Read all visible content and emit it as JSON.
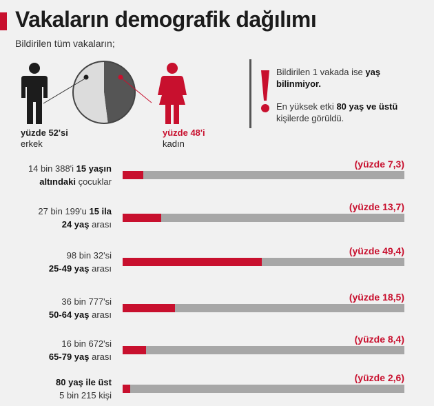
{
  "title": "Vakaların demografik dağılımı",
  "subtitle": "Bildirilen tüm vakaların;",
  "gender": {
    "male": {
      "pct_label": "yüzde 52'si",
      "label": "erkek",
      "value": 52
    },
    "female": {
      "pct_label": "yüzde 48'i",
      "label": "kadın",
      "value": 48
    }
  },
  "note": {
    "line1_a": "Bildirilen 1 vakada ise ",
    "line1_b": "yaş bilinmiyor.",
    "line2_a": "En yüksek etki ",
    "line2_b": "80 yaş ve üstü",
    "line2_c": " kişilerde görüldü."
  },
  "colors": {
    "accent": "#c8102e",
    "track": "#a7a7a7",
    "male": "#1c1c1c",
    "pie_light": "#dcdcdc",
    "pie_dark": "#555555"
  },
  "chart_data": {
    "type": "bar",
    "orientation": "horizontal",
    "xlim": [
      0,
      100
    ],
    "rows": [
      {
        "label_a": "14 bin 388'i ",
        "label_b": "15 yaşın",
        "label_c": "altındaki",
        "label_d": " çocuklar",
        "value": 7.3,
        "value_label": "(yüzde 7,3)"
      },
      {
        "label_a": "27 bin 199'u ",
        "label_b": "15 ila",
        "label_c": "24 yaş",
        "label_d": " arası",
        "value": 13.7,
        "value_label": "(yüzde 13,7)"
      },
      {
        "label_a": "98 bin 32'si",
        "label_b": "",
        "label_c": "25-49 yaş",
        "label_d": " arası",
        "value": 49.4,
        "value_label": "(yüzde 49,4)"
      },
      {
        "label_a": "36 bin 777'si",
        "label_b": "",
        "label_c": "50-64 yaş",
        "label_d": " arası",
        "value": 18.5,
        "value_label": "(yüzde 18,5)"
      },
      {
        "label_a": "16 bin 672'si",
        "label_b": "",
        "label_c": "65-79 yaş",
        "label_d": " arası",
        "value": 8.4,
        "value_label": "(yüzde 8,4)"
      },
      {
        "label_a": "",
        "label_b": "80 yaş ile üst",
        "label_c": "",
        "label_d": "5 bin 215 kişi",
        "value": 2.6,
        "value_label": "(yüzde 2,6)"
      }
    ]
  }
}
